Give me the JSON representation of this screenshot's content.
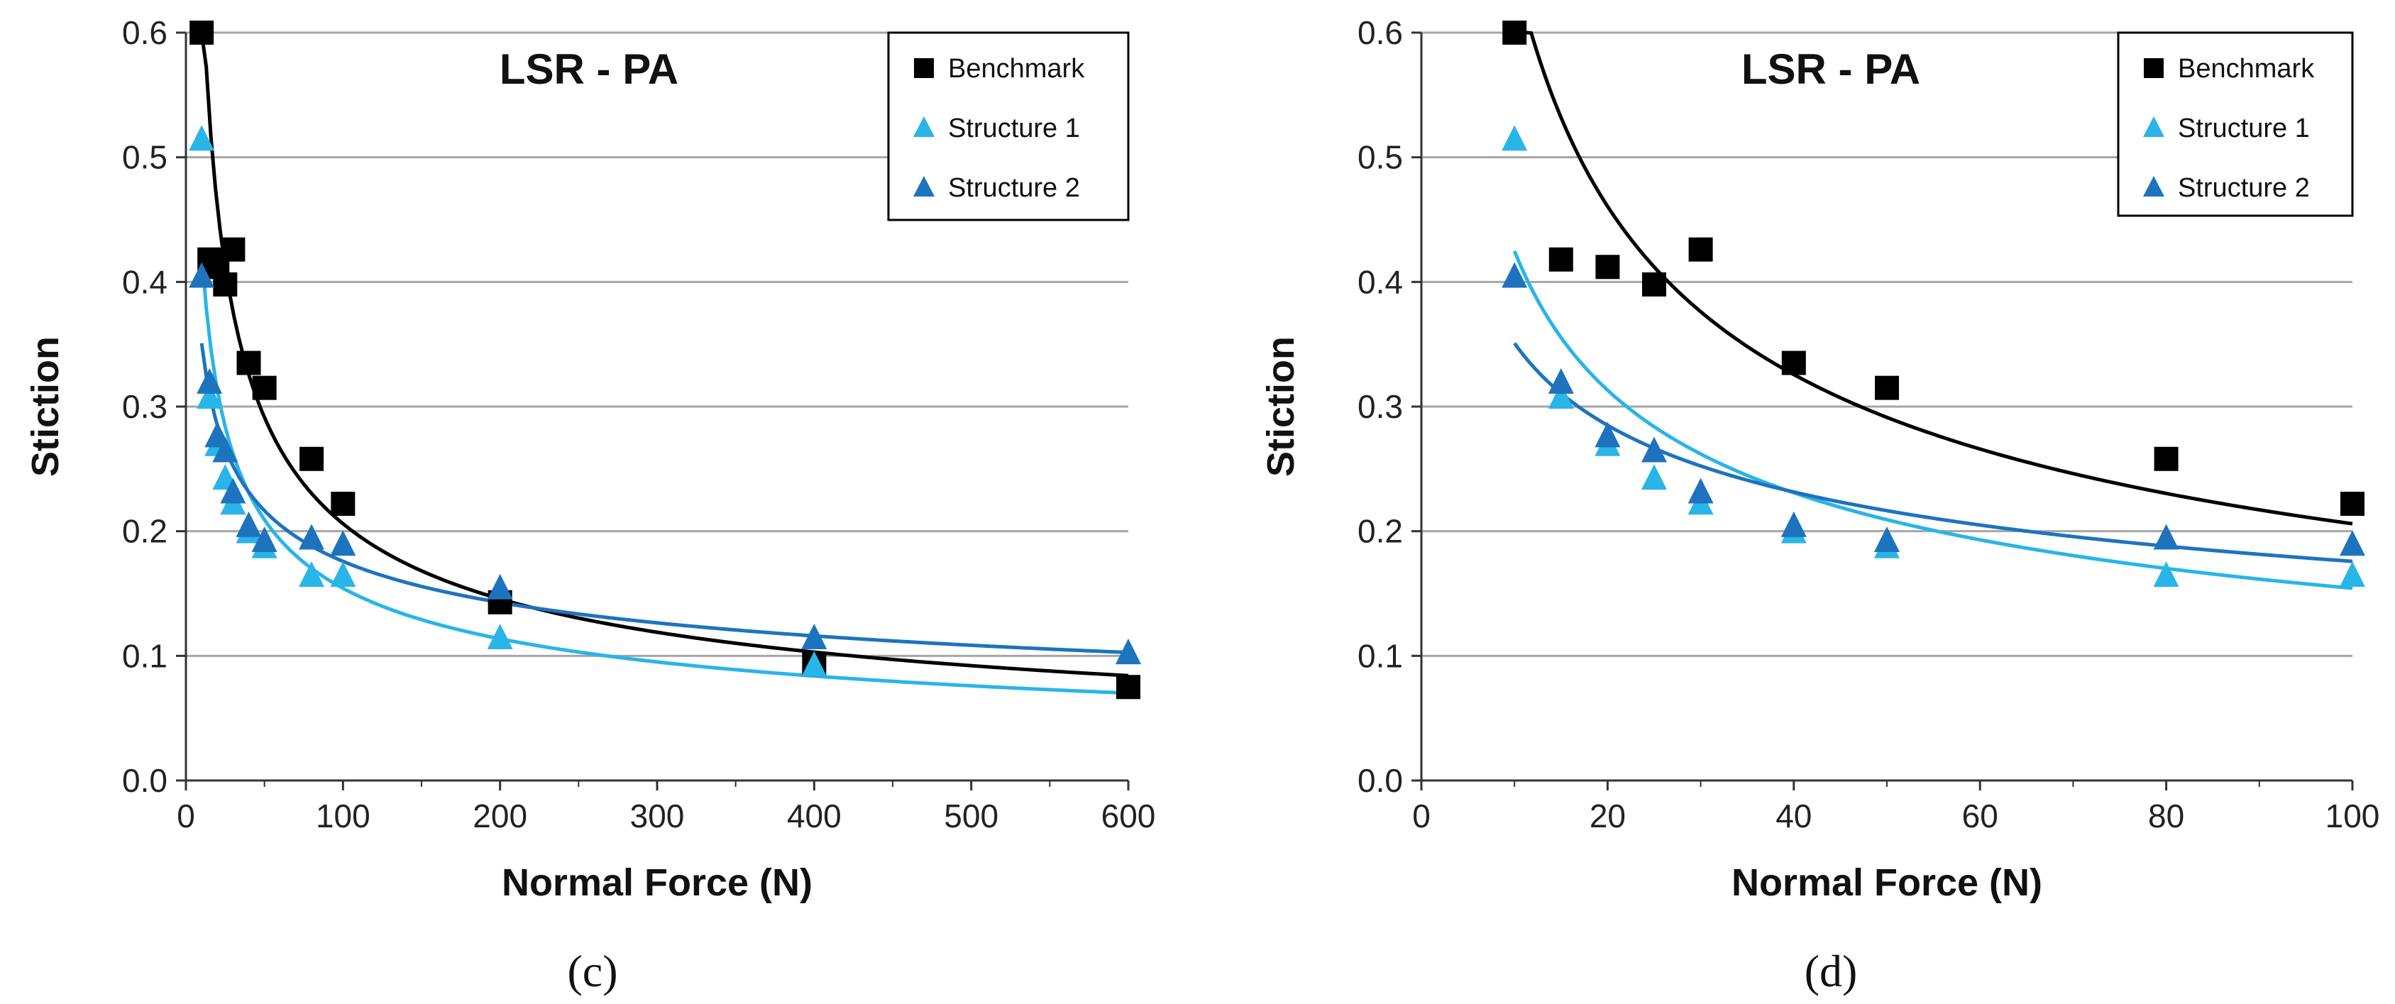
{
  "colors": {
    "Benchmark": "#000000",
    "Structure 1": "#29b5e8",
    "Structure 2": "#1e73be"
  },
  "chart_data": [
    {
      "type": "scatter",
      "title": "LSR - PA",
      "xlabel": "Normal Force (N)",
      "ylabel": "Stiction",
      "caption": "(c)",
      "xlim": [
        0,
        600
      ],
      "ylim": [
        0,
        0.6
      ],
      "xticks": [
        0,
        100,
        200,
        300,
        400,
        500,
        600
      ],
      "yticks": [
        0.0,
        0.1,
        0.2,
        0.3,
        0.4,
        0.5,
        0.6
      ],
      "grid": true,
      "legend": "top-right",
      "series": [
        {
          "name": "Benchmark",
          "marker": "square",
          "x": [
            10,
            15,
            20,
            25,
            30,
            40,
            50,
            80,
            100,
            200,
            400,
            600
          ],
          "y": [
            0.6,
            0.418,
            0.412,
            0.398,
            0.426,
            0.335,
            0.315,
            0.258,
            0.222,
            0.143,
            0.093,
            0.075
          ],
          "fit": {
            "a": 2.06,
            "b": -0.5
          }
        },
        {
          "name": "Structure 1",
          "marker": "triangle",
          "x": [
            10,
            15,
            20,
            25,
            30,
            40,
            50,
            80,
            100,
            200,
            400,
            600
          ],
          "y": [
            0.515,
            0.308,
            0.27,
            0.243,
            0.223,
            0.2,
            0.188,
            0.165,
            0.165,
            0.115,
            0.093,
            0.103
          ],
          "fit": {
            "a": 1.17,
            "b": -0.44
          }
        },
        {
          "name": "Structure 2",
          "marker": "triangle",
          "x": [
            10,
            15,
            20,
            25,
            30,
            40,
            50,
            80,
            100,
            200,
            400,
            600
          ],
          "y": [
            0.405,
            0.32,
            0.277,
            0.265,
            0.232,
            0.205,
            0.193,
            0.195,
            0.19,
            0.155,
            0.115,
            0.103
          ],
          "fit": {
            "a": 0.7,
            "b": -0.3
          }
        }
      ]
    },
    {
      "type": "scatter",
      "title": "LSR - PA",
      "xlabel": "Normal Force (N)",
      "ylabel": "Stiction",
      "caption": "(d)",
      "xlim": [
        0,
        100
      ],
      "ylim": [
        0,
        0.6
      ],
      "xticks": [
        0,
        20,
        40,
        60,
        80,
        100
      ],
      "yticks": [
        0.0,
        0.1,
        0.2,
        0.3,
        0.4,
        0.5,
        0.6
      ],
      "grid": true,
      "legend": "top-right",
      "series": [
        {
          "name": "Benchmark",
          "marker": "square",
          "x": [
            10,
            15,
            20,
            25,
            30,
            40,
            50,
            80,
            100
          ],
          "y": [
            0.6,
            0.418,
            0.412,
            0.398,
            0.426,
            0.335,
            0.315,
            0.258,
            0.222
          ],
          "fit": {
            "a": 2.06,
            "b": -0.5
          }
        },
        {
          "name": "Structure 1",
          "marker": "triangle",
          "x": [
            10,
            15,
            20,
            25,
            30,
            40,
            50,
            80,
            100
          ],
          "y": [
            0.515,
            0.308,
            0.27,
            0.243,
            0.223,
            0.2,
            0.188,
            0.165,
            0.165
          ],
          "fit": {
            "a": 1.17,
            "b": -0.44
          }
        },
        {
          "name": "Structure 2",
          "marker": "triangle",
          "x": [
            10,
            15,
            20,
            25,
            30,
            40,
            50,
            80,
            100
          ],
          "y": [
            0.405,
            0.32,
            0.277,
            0.265,
            0.232,
            0.205,
            0.193,
            0.195,
            0.19
          ],
          "fit": {
            "a": 0.7,
            "b": -0.3
          }
        }
      ]
    }
  ]
}
